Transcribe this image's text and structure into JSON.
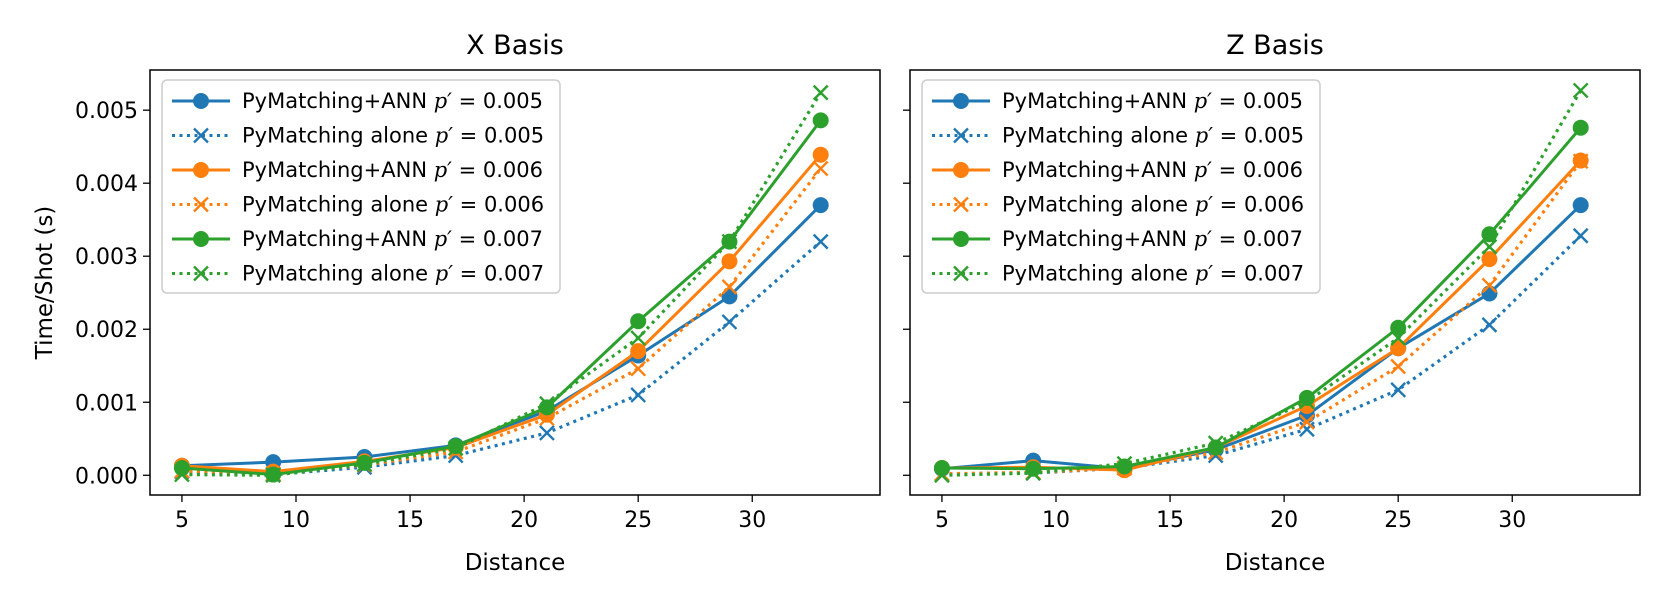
{
  "chart_data": [
    {
      "type": "line",
      "title": "X Basis",
      "xlabel": "Distance",
      "ylabel": "Time/Shot (s)",
      "xlim": [
        3.6,
        35.6
      ],
      "ylim": [
        -0.00027,
        0.00555
      ],
      "xticks": [
        5,
        10,
        15,
        20,
        25,
        30
      ],
      "yticks": [
        0.0,
        0.001,
        0.002,
        0.003,
        0.004,
        0.005
      ],
      "ytick_labels": [
        "0.000",
        "0.001",
        "0.002",
        "0.003",
        "0.004",
        "0.005"
      ],
      "legend_position": "top-left",
      "x": [
        5,
        9,
        13,
        17,
        21,
        25,
        29,
        33
      ],
      "series": [
        {
          "name": "PyMatching+ANN",
          "p": "0.005",
          "color": "#1f77b4",
          "style": "solid",
          "marker": "circle",
          "values": [
            0.00013,
            0.00018,
            0.00025,
            0.00041,
            0.00088,
            0.00164,
            0.00245,
            0.0037
          ]
        },
        {
          "name": "PyMatching alone",
          "p": "0.005",
          "color": "#1f77b4",
          "style": "dotted",
          "marker": "x",
          "values": [
            5e-05,
            1e-05,
            0.00011,
            0.00027,
            0.00058,
            0.0011,
            0.0021,
            0.0032
          ]
        },
        {
          "name": "PyMatching+ANN",
          "p": "0.006",
          "color": "#ff7f0e",
          "style": "solid",
          "marker": "circle",
          "values": [
            0.00013,
            5e-05,
            0.00019,
            0.00038,
            0.00083,
            0.0017,
            0.00293,
            0.00439
          ]
        },
        {
          "name": "PyMatching alone",
          "p": "0.006",
          "color": "#ff7f0e",
          "style": "dotted",
          "marker": "x",
          "values": [
            6e-05,
            2e-05,
            0.00014,
            0.00032,
            0.00078,
            0.00146,
            0.00258,
            0.0042
          ]
        },
        {
          "name": "PyMatching+ANN",
          "p": "0.007",
          "color": "#2ca02c",
          "style": "solid",
          "marker": "circle",
          "values": [
            0.0001,
            1e-05,
            0.00017,
            0.0004,
            0.00093,
            0.00211,
            0.0032,
            0.00486
          ]
        },
        {
          "name": "PyMatching alone",
          "p": "0.007",
          "color": "#2ca02c",
          "style": "dotted",
          "marker": "x",
          "values": [
            1e-05,
            0.0,
            0.00015,
            0.00037,
            0.00098,
            0.00188,
            0.0032,
            0.00524
          ]
        }
      ]
    },
    {
      "type": "line",
      "title": "Z Basis",
      "xlabel": "Distance",
      "ylabel": "",
      "xlim": [
        3.6,
        35.6
      ],
      "ylim": [
        -0.00027,
        0.00555
      ],
      "xticks": [
        5,
        10,
        15,
        20,
        25,
        30
      ],
      "yticks": [
        0.0,
        0.001,
        0.002,
        0.003,
        0.004,
        0.005
      ],
      "ytick_labels": [],
      "legend_position": "top-left",
      "x": [
        5,
        9,
        13,
        17,
        21,
        25,
        29,
        33
      ],
      "series": [
        {
          "name": "PyMatching+ANN",
          "p": "0.005",
          "color": "#1f77b4",
          "style": "solid",
          "marker": "circle",
          "values": [
            9e-05,
            0.0002,
            9e-05,
            0.00035,
            0.00082,
            0.00174,
            0.00249,
            0.0037
          ]
        },
        {
          "name": "PyMatching alone",
          "p": "0.005",
          "color": "#1f77b4",
          "style": "dotted",
          "marker": "x",
          "values": [
            2e-05,
            3e-05,
            0.0001,
            0.00027,
            0.00063,
            0.00117,
            0.00206,
            0.00328
          ]
        },
        {
          "name": "PyMatching+ANN",
          "p": "0.006",
          "color": "#ff7f0e",
          "style": "solid",
          "marker": "circle",
          "values": [
            0.0001,
            0.00011,
            7e-05,
            0.00038,
            0.00095,
            0.00174,
            0.00296,
            0.00431
          ]
        },
        {
          "name": "PyMatching alone",
          "p": "0.006",
          "color": "#ff7f0e",
          "style": "dotted",
          "marker": "x",
          "values": [
            2e-05,
            4e-05,
            0.0001,
            0.00031,
            0.00073,
            0.00149,
            0.0026,
            0.0043
          ]
        },
        {
          "name": "PyMatching+ANN",
          "p": "0.007",
          "color": "#2ca02c",
          "style": "solid",
          "marker": "circle",
          "values": [
            0.0001,
            9e-05,
            0.00012,
            0.00038,
            0.00106,
            0.00202,
            0.0033,
            0.00476
          ]
        },
        {
          "name": "PyMatching alone",
          "p": "0.007",
          "color": "#2ca02c",
          "style": "dotted",
          "marker": "x",
          "values": [
            0.0,
            3e-05,
            0.00016,
            0.00044,
            0.00101,
            0.00188,
            0.00313,
            0.00527
          ]
        }
      ]
    }
  ]
}
